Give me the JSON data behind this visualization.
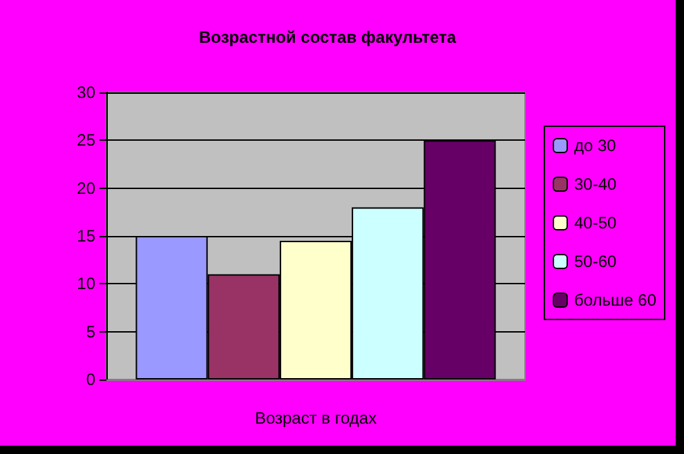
{
  "chart_data": {
    "type": "bar",
    "title": "Возрастной состав факультета",
    "xlabel": "Возраст в годах",
    "categories": [
      null
    ],
    "series": [
      {
        "name": "до 30",
        "color": "#9999ff",
        "values": [
          15
        ]
      },
      {
        "name": "30-40",
        "color": "#993366",
        "values": [
          11
        ]
      },
      {
        "name": "40-50",
        "color": "#ffffcc",
        "values": [
          14.5
        ]
      },
      {
        "name": "50-60",
        "color": "#ccffff",
        "values": [
          18
        ]
      },
      {
        "name": "больше 60",
        "color": "#660066",
        "values": [
          25
        ]
      }
    ],
    "ylim": [
      0,
      30
    ],
    "yticks": [
      0,
      5,
      10,
      15,
      20,
      25,
      30
    ],
    "grid": "y",
    "legend": "right"
  }
}
